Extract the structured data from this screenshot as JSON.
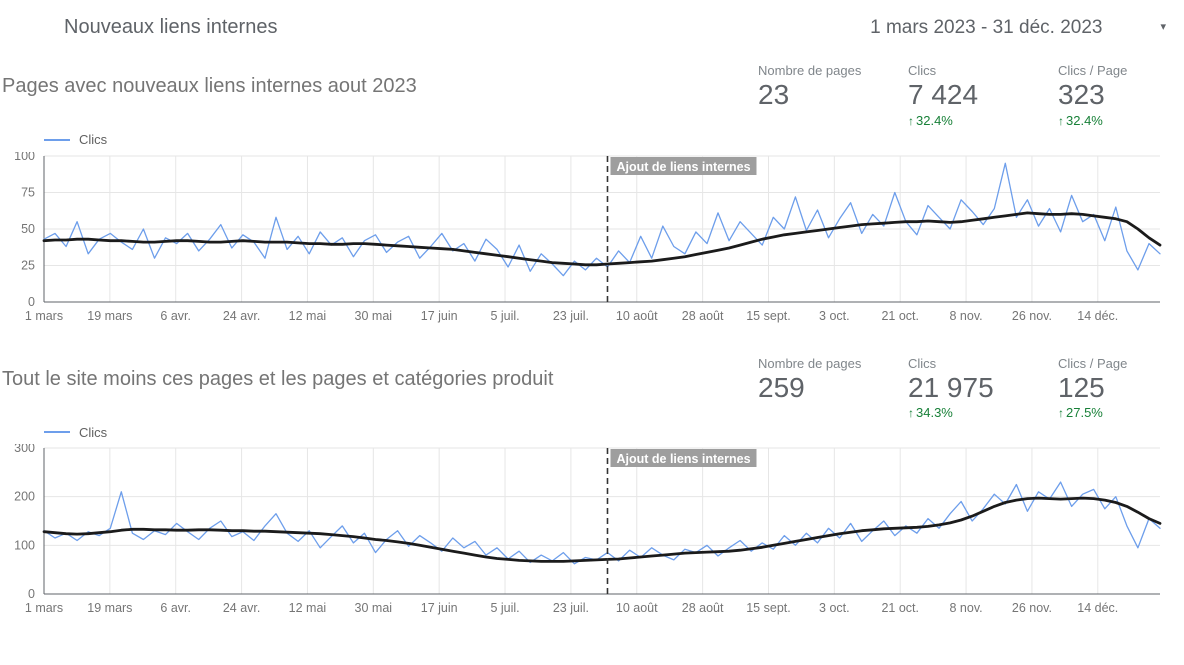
{
  "header": {
    "title": "Nouveaux liens internes",
    "date_range": "1 mars 2023 - 31 déc. 2023",
    "caret_icon": "▾"
  },
  "colors": {
    "clics_line": "#6d9eeb",
    "trend_line": "#1b1b1b",
    "positive_delta": "#188038",
    "annotation_bg": "#9e9e9e",
    "annotation_text": "#ffffff",
    "grid": "#e6e6e6",
    "axis_text": "#757575",
    "axis_line": "#5f6368",
    "dashed_line": "#333333"
  },
  "sections": [
    {
      "title": "Pages avec nouveaux liens internes aout 2023",
      "legend_label": "Clics",
      "kpis": [
        {
          "label": "Nombre de pages",
          "value": "23",
          "delta_arrow": "",
          "delta": ""
        },
        {
          "label": "Clics",
          "value": "7 424",
          "delta_arrow": "↑",
          "delta": "32.4%"
        },
        {
          "label": "Clics / Page",
          "value": "323",
          "delta_arrow": "↑",
          "delta": "32.4%"
        }
      ]
    },
    {
      "title": "Tout le site moins ces pages et les pages et catégories produit",
      "legend_label": "Clics",
      "kpis": [
        {
          "label": "Nombre de pages",
          "value": "259",
          "delta_arrow": "",
          "delta": ""
        },
        {
          "label": "Clics",
          "value": "21 975",
          "delta_arrow": "↑",
          "delta": "34.3%"
        },
        {
          "label": "Clics / Page",
          "value": "125",
          "delta_arrow": "↑",
          "delta": "27.5%"
        }
      ]
    }
  ],
  "chart_data": [
    {
      "type": "line",
      "title": "Pages avec nouveaux liens internes aout 2023",
      "legend": [
        "Clics"
      ],
      "x_start": "1 mars 2023",
      "x_end": "31 déc. 2023",
      "total_days": 305,
      "x_tick_interval_days": 18,
      "x_tick_labels": [
        "1 mars",
        "19 mars",
        "6 avr.",
        "24 avr.",
        "12 mai",
        "30 mai",
        "17 juin",
        "5 juil.",
        "23 juil.",
        "10 août",
        "28 août",
        "15 sept.",
        "3 oct.",
        "21 oct.",
        "8 nov.",
        "26 nov.",
        "14 déc."
      ],
      "ylim": [
        0,
        100
      ],
      "y_ticks": [
        0,
        25,
        50,
        75,
        100
      ],
      "grid": true,
      "annotation": {
        "label": "Ajout de liens internes",
        "x_day": 154
      },
      "sample_interval_days": 3,
      "series": [
        {
          "name": "Clics",
          "color_key": "clics_line",
          "values": [
            43,
            47,
            38,
            55,
            33,
            43,
            47,
            41,
            36,
            50,
            30,
            44,
            40,
            47,
            35,
            43,
            53,
            37,
            46,
            41,
            30,
            58,
            36,
            45,
            33,
            48,
            39,
            44,
            31,
            42,
            46,
            34,
            41,
            45,
            30,
            38,
            47,
            35,
            40,
            28,
            43,
            36,
            24,
            39,
            21,
            33,
            26,
            18,
            28,
            22,
            30,
            24,
            35,
            27,
            45,
            30,
            52,
            38,
            33,
            48,
            40,
            61,
            42,
            55,
            47,
            39,
            58,
            50,
            72,
            49,
            63,
            44,
            57,
            68,
            47,
            60,
            52,
            75,
            55,
            46,
            66,
            58,
            50,
            70,
            62,
            53,
            64,
            95,
            58,
            70,
            52,
            64,
            48,
            73,
            55,
            60,
            42,
            65,
            35,
            22,
            40,
            33
          ]
        },
        {
          "name": "trend",
          "color_key": "trend_line",
          "values": [
            42,
            42.5,
            42.5,
            43,
            43,
            42.5,
            42,
            42,
            41.5,
            41,
            41,
            41.5,
            42,
            42,
            41.5,
            41,
            41,
            41.5,
            42,
            41.5,
            41,
            41,
            41,
            40.5,
            40,
            40,
            39.5,
            39.5,
            40,
            40,
            39.5,
            39,
            38.5,
            38,
            37.5,
            37,
            36.5,
            36,
            35,
            34,
            33,
            32,
            31,
            30,
            29,
            28,
            27,
            26.5,
            26,
            25.5,
            25.5,
            26,
            26.5,
            27,
            27.5,
            28,
            29,
            30,
            31,
            32.5,
            34,
            35.5,
            37,
            39,
            41,
            43,
            44.5,
            46,
            47,
            48,
            49,
            50,
            51,
            52,
            53,
            53.5,
            54,
            54.5,
            55,
            55,
            55.5,
            55,
            54.5,
            55,
            56,
            57,
            58,
            59,
            60,
            61,
            60.5,
            60,
            60,
            60.5,
            60,
            59,
            58,
            57,
            55,
            50,
            44,
            39
          ]
        }
      ]
    },
    {
      "type": "line",
      "title": "Tout le site moins ces pages et les pages et catégories produit",
      "legend": [
        "Clics"
      ],
      "x_start": "1 mars 2023",
      "x_end": "31 déc. 2023",
      "total_days": 305,
      "x_tick_interval_days": 18,
      "x_tick_labels": [
        "1 mars",
        "19 mars",
        "6 avr.",
        "24 avr.",
        "12 mai",
        "30 mai",
        "17 juin",
        "5 juil.",
        "23 juil.",
        "10 août",
        "28 août",
        "15 sept.",
        "3 oct.",
        "21 oct.",
        "8 nov.",
        "26 nov.",
        "14 déc."
      ],
      "ylim": [
        0,
        300
      ],
      "y_ticks": [
        0,
        100,
        200,
        300
      ],
      "grid": true,
      "annotation": {
        "label": "Ajout de liens internes",
        "x_day": 154
      },
      "sample_interval_days": 3,
      "series": [
        {
          "name": "Clics",
          "color_key": "clics_line",
          "values": [
            130,
            115,
            125,
            110,
            128,
            120,
            135,
            210,
            125,
            112,
            130,
            122,
            145,
            128,
            112,
            135,
            150,
            118,
            128,
            110,
            140,
            165,
            125,
            108,
            130,
            95,
            118,
            140,
            105,
            125,
            85,
            112,
            130,
            98,
            120,
            105,
            88,
            115,
            95,
            108,
            80,
            95,
            72,
            88,
            65,
            80,
            68,
            85,
            62,
            75,
            70,
            85,
            68,
            90,
            75,
            95,
            80,
            70,
            92,
            85,
            100,
            78,
            95,
            110,
            88,
            105,
            92,
            120,
            100,
            125,
            105,
            135,
            115,
            145,
            108,
            130,
            150,
            120,
            140,
            125,
            155,
            135,
            165,
            190,
            150,
            175,
            205,
            185,
            225,
            170,
            210,
            195,
            230,
            180,
            205,
            215,
            175,
            200,
            140,
            95,
            155,
            135
          ]
        },
        {
          "name": "trend",
          "color_key": "trend_line",
          "values": [
            128,
            126,
            124,
            123,
            124,
            126,
            128,
            131,
            133,
            133,
            132,
            132,
            131,
            131,
            132,
            132,
            131,
            130,
            130,
            129,
            129,
            128,
            127,
            126,
            125,
            124,
            122,
            120,
            118,
            115,
            112,
            110,
            107,
            104,
            100,
            96,
            92,
            88,
            84,
            80,
            76,
            73,
            71,
            69,
            68,
            67,
            67,
            67,
            68,
            69,
            70,
            71,
            72,
            74,
            76,
            78,
            80,
            82,
            84,
            85,
            86,
            87,
            88,
            90,
            93,
            96,
            100,
            104,
            108,
            112,
            116,
            120,
            124,
            127,
            130,
            132,
            134,
            135,
            136,
            137,
            139,
            142,
            146,
            152,
            160,
            170,
            180,
            188,
            193,
            196,
            197,
            196,
            195,
            196,
            197,
            196,
            193,
            188,
            180,
            168,
            155,
            145
          ]
        }
      ]
    }
  ]
}
